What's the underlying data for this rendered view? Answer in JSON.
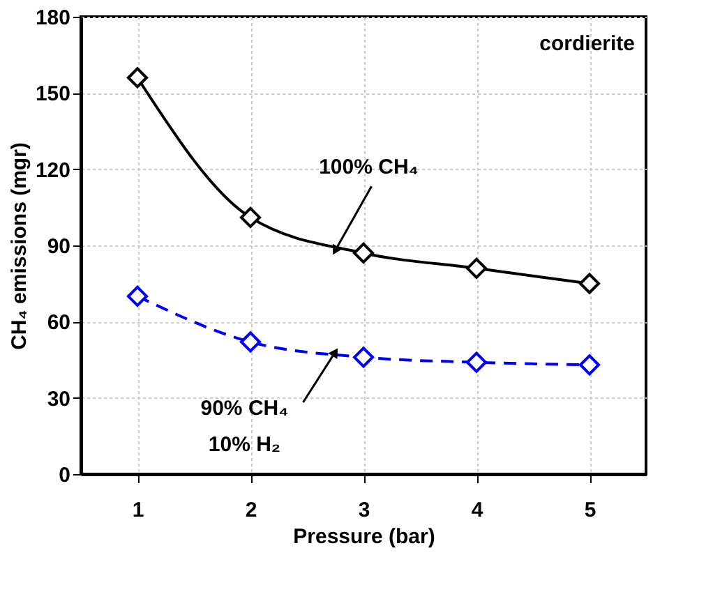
{
  "chart_data": {
    "type": "line",
    "xlabel": "Pressure (bar)",
    "ylabel": "CH₄ emissions (mgr)",
    "x": [
      1,
      2,
      3,
      4,
      5
    ],
    "series": [
      {
        "color": "#000000",
        "values": [
          156,
          101,
          87,
          81,
          75
        ],
        "line_style": "solid"
      },
      {
        "color": "#0000ff",
        "values": [
          70,
          52,
          46,
          44,
          43
        ],
        "line_style": "dashed"
      }
    ],
    "xlim": [
      0.5,
      5.5
    ],
    "xticks": [
      1,
      2,
      3,
      4,
      5
    ],
    "ylim": [
      0,
      180
    ],
    "yticks": [
      0,
      30,
      60,
      90,
      120,
      150,
      180
    ],
    "grid": true,
    "marker": "diamond",
    "annotations": [
      "cordierite",
      {
        "text": "100% CH₄",
        "x": 2.75,
        "y": 88
      },
      {
        "text": "90% CH₄\n10% H₂",
        "x": 2.75,
        "y": 48
      }
    ]
  }
}
